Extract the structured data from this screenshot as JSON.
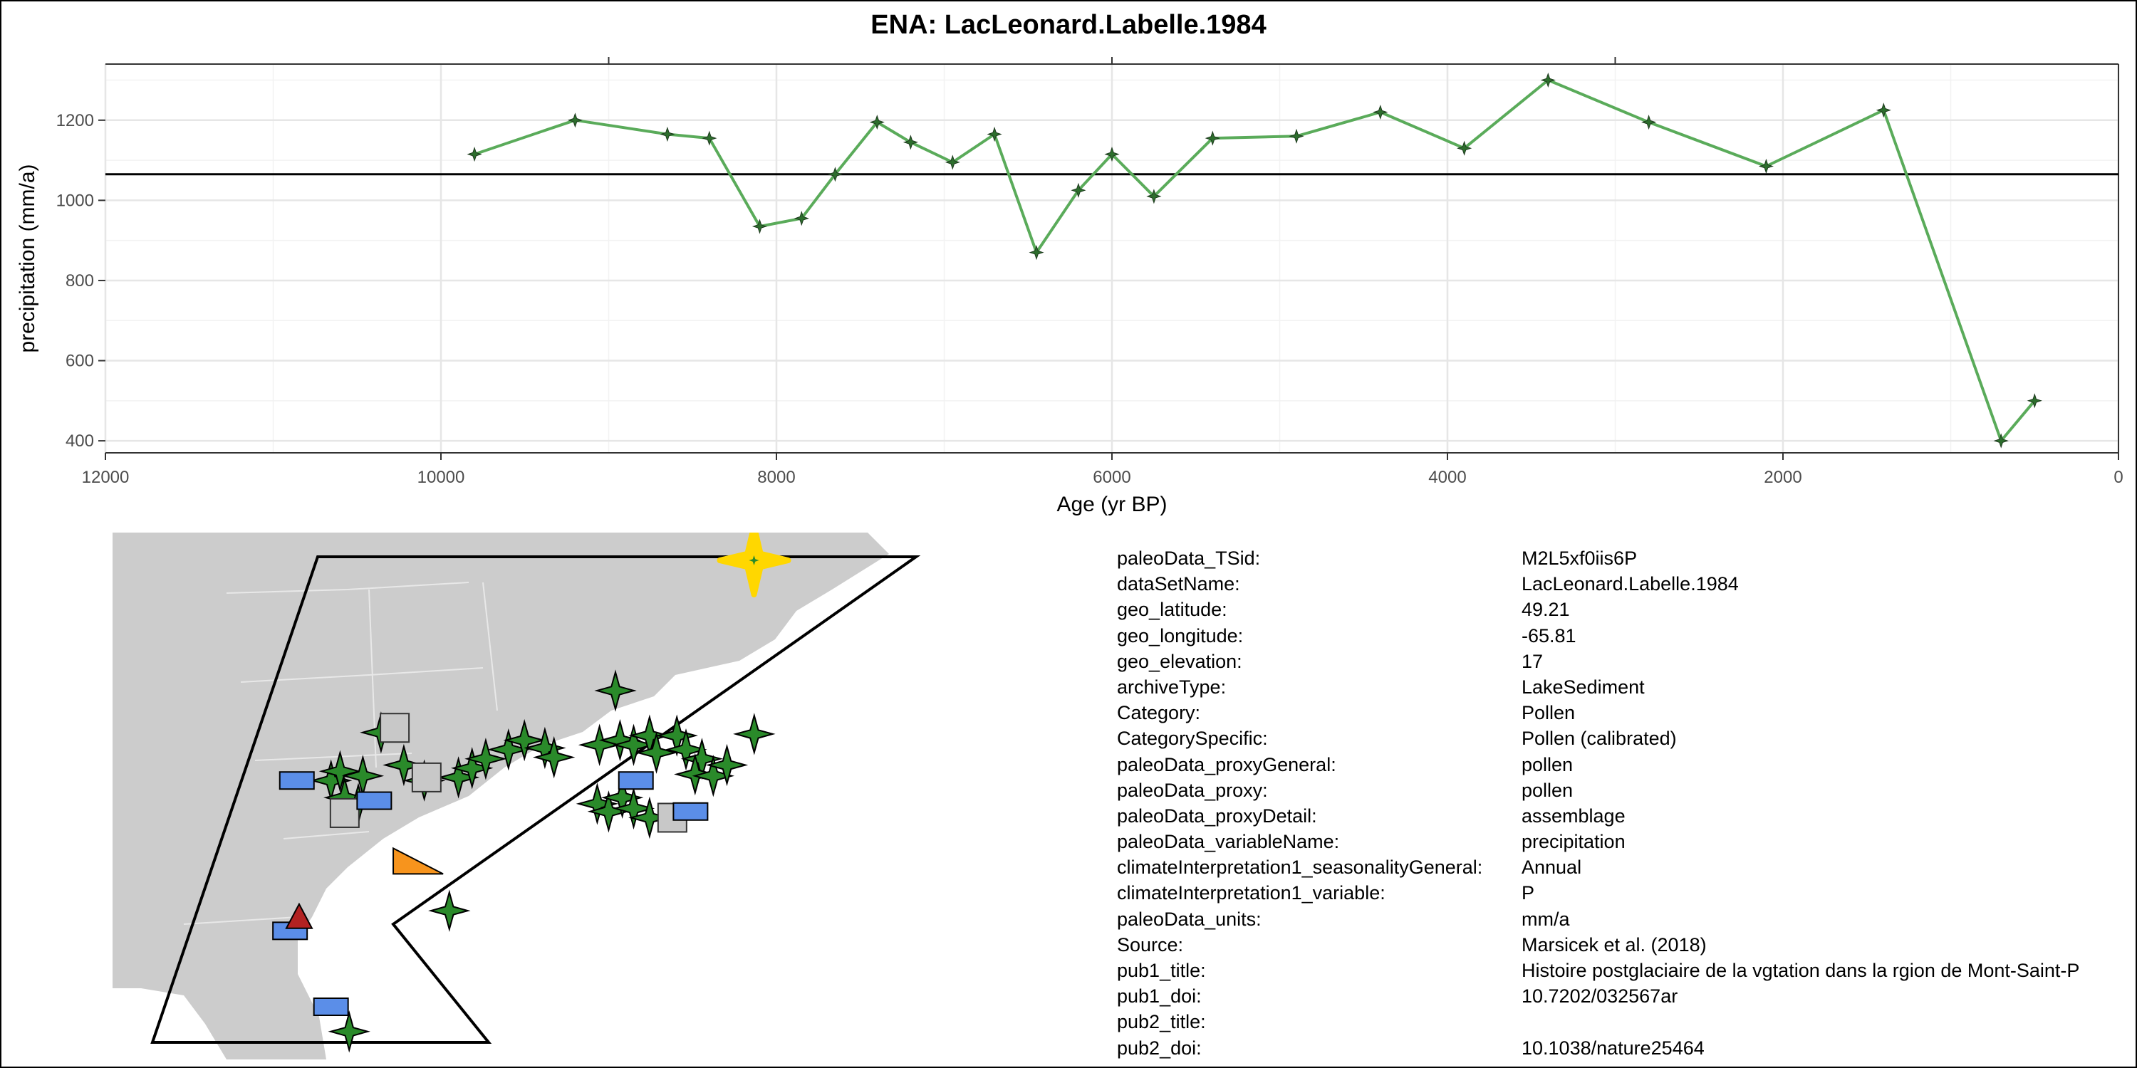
{
  "chart_data": {
    "type": "line",
    "title": "ENA: LacLeonard.Labelle.1984",
    "xlabel": "Age (yr BP)",
    "ylabel": "precipitation (mm/a)",
    "xlim": [
      12000,
      0
    ],
    "ylim": [
      370,
      1340
    ],
    "x_reversed": true,
    "x_ticks": [
      12000,
      10000,
      8000,
      6000,
      4000,
      2000,
      0
    ],
    "x_tick_labels": [
      "12000",
      "10000",
      "8000",
      "6000",
      "4000",
      "2000",
      "0"
    ],
    "y_ticks": [
      400,
      600,
      800,
      1000,
      1200
    ],
    "y_tick_labels": [
      "400",
      "600",
      "800",
      "1000",
      "1200"
    ],
    "grid": true,
    "mean_line": 1065,
    "series": [
      {
        "color": "#5aab5a",
        "marker_color": "#2d6e2d",
        "x": [
          9800,
          9200,
          8650,
          8400,
          8100,
          7850,
          7650,
          7400,
          7200,
          6950,
          6700,
          6450,
          6200,
          6000,
          5750,
          5400,
          4900,
          4400,
          3900,
          3400,
          2800,
          2100,
          1400,
          700,
          500
        ],
        "y": [
          1115,
          1200,
          1165,
          1155,
          935,
          955,
          1065,
          1195,
          1145,
          1095,
          1165,
          870,
          1025,
          1115,
          1010,
          1155,
          1160,
          1220,
          1130,
          1300,
          1195,
          1085,
          1225,
          400,
          500
        ]
      }
    ]
  },
  "map": {
    "sites": [
      {
        "shape": "star",
        "color": "#2a8a2a",
        "lon": -82.2,
        "lat": 38.1
      },
      {
        "shape": "star",
        "color": "#2a8a2a",
        "lon": -84.4,
        "lat": 35.0
      },
      {
        "shape": "star",
        "color": "#2a8a2a",
        "lon": -84.0,
        "lat": 35.6
      },
      {
        "shape": "star",
        "color": "#2a8a2a",
        "lon": -83.0,
        "lat": 35.3
      },
      {
        "shape": "star",
        "color": "#2a8a2a",
        "lon": -83.8,
        "lat": 33.9
      },
      {
        "shape": "star",
        "color": "#2a8a2a",
        "lon": -83.2,
        "lat": 33.5
      },
      {
        "shape": "star",
        "color": "#2a8a2a",
        "lon": -81.2,
        "lat": 36.0
      },
      {
        "shape": "star",
        "color": "#2a8a2a",
        "lon": -80.3,
        "lat": 35.0
      },
      {
        "shape": "star",
        "color": "#2a8a2a",
        "lon": -78.8,
        "lat": 35.2
      },
      {
        "shape": "star",
        "color": "#2a8a2a",
        "lon": -78.2,
        "lat": 35.8
      },
      {
        "shape": "star",
        "color": "#2a8a2a",
        "lon": -77.6,
        "lat": 36.4
      },
      {
        "shape": "star",
        "color": "#2a8a2a",
        "lon": -76.6,
        "lat": 37.0
      },
      {
        "shape": "star",
        "color": "#2a8a2a",
        "lon": -75.9,
        "lat": 37.6
      },
      {
        "shape": "star",
        "color": "#2a8a2a",
        "lon": -75.0,
        "lat": 37.1
      },
      {
        "shape": "star",
        "color": "#2a8a2a",
        "lon": -74.6,
        "lat": 36.5
      },
      {
        "shape": "star",
        "color": "#2a8a2a",
        "lon": -72.6,
        "lat": 37.3
      },
      {
        "shape": "star",
        "color": "#2a8a2a",
        "lon": -71.7,
        "lat": 37.6
      },
      {
        "shape": "star",
        "color": "#2a8a2a",
        "lon": -71.1,
        "lat": 37.3
      },
      {
        "shape": "star",
        "color": "#2a8a2a",
        "lon": -70.4,
        "lat": 37.9
      },
      {
        "shape": "star",
        "color": "#2a8a2a",
        "lon": -70.1,
        "lat": 36.8
      },
      {
        "shape": "star",
        "color": "#2a8a2a",
        "lon": -69.2,
        "lat": 37.9
      },
      {
        "shape": "star",
        "color": "#2a8a2a",
        "lon": -68.8,
        "lat": 37.0
      },
      {
        "shape": "star",
        "color": "#2a8a2a",
        "lon": -68.1,
        "lat": 36.4
      },
      {
        "shape": "star",
        "color": "#2a8a2a",
        "lon": -68.4,
        "lat": 35.4
      },
      {
        "shape": "star",
        "color": "#2a8a2a",
        "lon": -67.6,
        "lat": 35.3
      },
      {
        "shape": "star",
        "color": "#2a8a2a",
        "lon": -67.0,
        "lat": 36.0
      },
      {
        "shape": "star",
        "color": "#2a8a2a",
        "lon": -72.7,
        "lat": 33.5
      },
      {
        "shape": "star",
        "color": "#2a8a2a",
        "lon": -72.2,
        "lat": 33.0
      },
      {
        "shape": "star",
        "color": "#2a8a2a",
        "lon": -71.6,
        "lat": 33.9
      },
      {
        "shape": "star",
        "color": "#2a8a2a",
        "lon": -71.1,
        "lat": 33.2
      },
      {
        "shape": "star",
        "color": "#2a8a2a",
        "lon": -70.4,
        "lat": 32.6
      },
      {
        "shape": "star",
        "color": "#2a8a2a",
        "lon": -71.9,
        "lat": 40.8
      },
      {
        "shape": "star",
        "color": "#2a8a2a",
        "lon": -65.8,
        "lat": 38.0
      },
      {
        "shape": "star",
        "color": "#2a8a2a",
        "lon": -79.2,
        "lat": 26.6
      },
      {
        "shape": "star",
        "color": "#2a8a2a",
        "lon": -83.6,
        "lat": 18.8
      },
      {
        "shape": "square",
        "color": "#c8c8c8",
        "lon": -81.6,
        "lat": 38.4
      },
      {
        "shape": "square",
        "color": "#c8c8c8",
        "lon": -80.2,
        "lat": 35.2
      },
      {
        "shape": "square",
        "color": "#c8c8c8",
        "lon": -83.8,
        "lat": 32.9
      },
      {
        "shape": "square",
        "color": "#c8c8c8",
        "lon": -69.4,
        "lat": 32.6
      },
      {
        "shape": "rect",
        "color": "#5b8ee8",
        "lon": -85.9,
        "lat": 35.0
      },
      {
        "shape": "rect",
        "color": "#5b8ee8",
        "lon": -82.5,
        "lat": 33.7
      },
      {
        "shape": "rect",
        "color": "#5b8ee8",
        "lon": -71.0,
        "lat": 35.0
      },
      {
        "shape": "rect",
        "color": "#5b8ee8",
        "lon": -68.6,
        "lat": 33.0
      },
      {
        "shape": "rect",
        "color": "#5b8ee8",
        "lon": -86.2,
        "lat": 25.3
      },
      {
        "shape": "rect",
        "color": "#5b8ee8",
        "lon": -84.4,
        "lat": 20.4
      },
      {
        "shape": "triangle",
        "color": "#f7941d",
        "lon": -80.6,
        "lat": 29.8
      },
      {
        "shape": "triangle-up",
        "color": "#b22222",
        "lon": -85.8,
        "lat": 26.2
      }
    ],
    "highlight": {
      "shape": "star",
      "color": "#ffd700",
      "lon": -65.81,
      "lat": 49.21
    }
  },
  "metadata": [
    {
      "key": "paleoData_TSid:",
      "value": "M2L5xf0iis6P"
    },
    {
      "key": "dataSetName:",
      "value": "LacLeonard.Labelle.1984"
    },
    {
      "key": "geo_latitude:",
      "value": "49.21"
    },
    {
      "key": "geo_longitude:",
      "value": "-65.81"
    },
    {
      "key": "geo_elevation:",
      "value": "17"
    },
    {
      "key": "archiveType:",
      "value": "LakeSediment"
    },
    {
      "key": "Category:",
      "value": "Pollen"
    },
    {
      "key": "CategorySpecific:",
      "value": "Pollen (calibrated)"
    },
    {
      "key": "paleoData_proxyGeneral:",
      "value": "pollen"
    },
    {
      "key": "paleoData_proxy:",
      "value": "pollen"
    },
    {
      "key": "paleoData_proxyDetail:",
      "value": "assemblage"
    },
    {
      "key": "paleoData_variableName:",
      "value": "precipitation"
    },
    {
      "key": "climateInterpretation1_seasonalityGeneral:",
      "value": "Annual"
    },
    {
      "key": "climateInterpretation1_variable:",
      "value": "P"
    },
    {
      "key": "paleoData_units:",
      "value": "mm/a"
    },
    {
      "key": "Source:",
      "value": "Marsicek et al. (2018)"
    },
    {
      "key": "pub1_title:",
      "value": "Histoire postglaciaire de la vgtation dans la rgion de Mont-Saint-P"
    },
    {
      "key": "pub1_doi:",
      "value": "10.7202/032567ar"
    },
    {
      "key": "pub2_title:",
      "value": ""
    },
    {
      "key": "pub2_doi:",
      "value": "10.1038/nature25464"
    }
  ]
}
